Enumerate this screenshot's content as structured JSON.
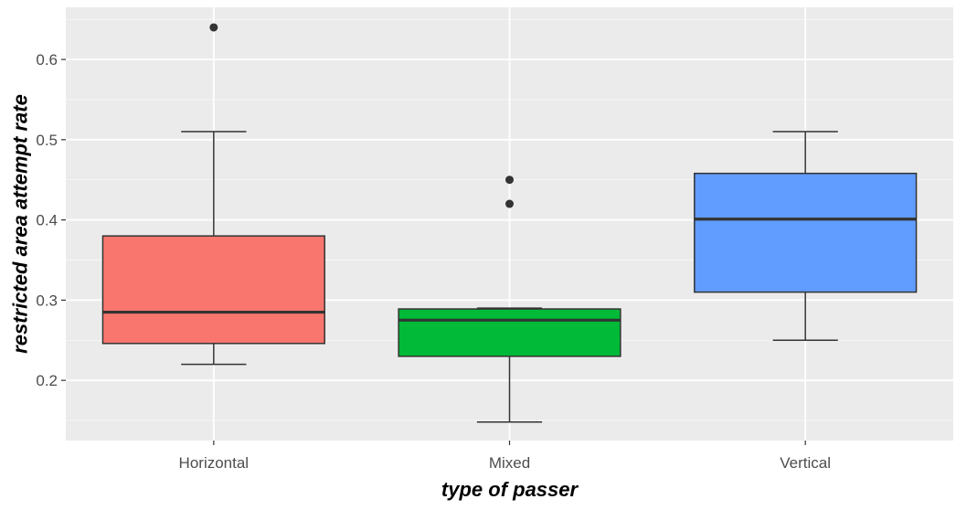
{
  "chart_data": {
    "type": "boxplot",
    "title": "",
    "xlabel": "type of passer",
    "ylabel": "restricted area attempt rate",
    "ylim": [
      0.125,
      0.665
    ],
    "yticks": [
      0.2,
      0.3,
      0.4,
      0.5,
      0.6
    ],
    "ytick_labels": [
      "0.2",
      "0.3",
      "0.4",
      "0.5",
      "0.6"
    ],
    "grid": true,
    "legend": "none",
    "categories": [
      "Horizontal",
      "Mixed",
      "Vertical"
    ],
    "boxes": [
      {
        "category": "Horizontal",
        "whisker_low": 0.22,
        "q1": 0.246,
        "median": 0.285,
        "q3": 0.38,
        "whisker_high": 0.51,
        "outliers": [
          0.64
        ],
        "color": "#F8766D"
      },
      {
        "category": "Mixed",
        "whisker_low": 0.148,
        "q1": 0.23,
        "median": 0.275,
        "q3": 0.289,
        "whisker_high": 0.29,
        "outliers": [
          0.45,
          0.42
        ],
        "color": "#00BA38"
      },
      {
        "category": "Vertical",
        "whisker_low": 0.25,
        "q1": 0.31,
        "median": 0.401,
        "q3": 0.458,
        "whisker_high": 0.51,
        "outliers": [],
        "color": "#619CFF"
      }
    ]
  },
  "colors": {
    "panel_background": "#EBEBEB",
    "grid_major": "#FFFFFF",
    "box_outline": "#333333",
    "tick_text": "#4D4D4D"
  }
}
